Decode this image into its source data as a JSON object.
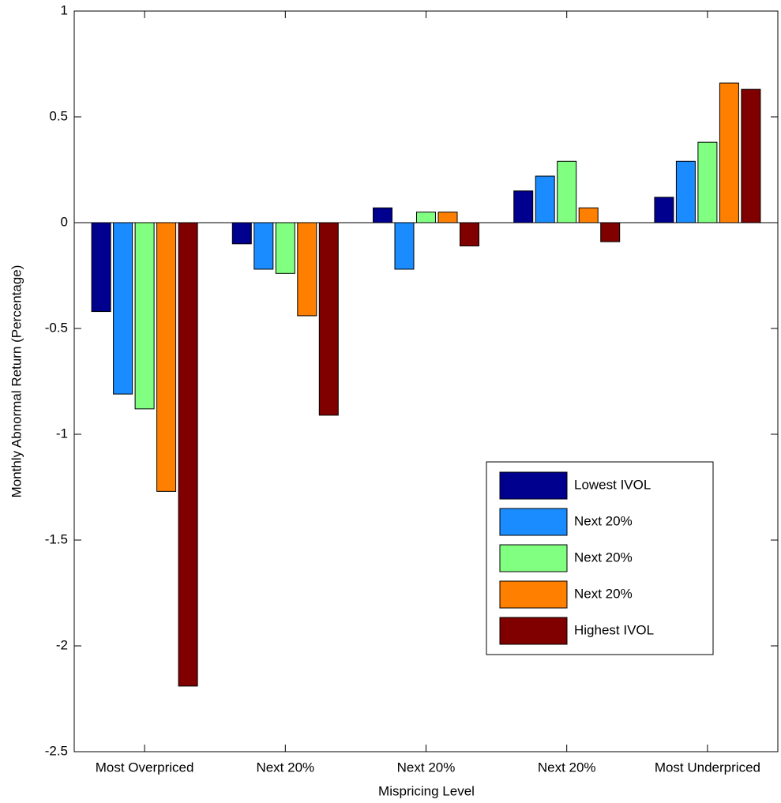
{
  "chart_data": {
    "type": "bar",
    "x_label": "Mispricing Level",
    "y_label": "Monthly Abnormal Return (Percentage)",
    "categories": [
      "Most Overpriced",
      "Next 20%",
      "Next 20%",
      "Next 20%",
      "Most Underpriced"
    ],
    "series": [
      {
        "name": "Lowest IVOL",
        "color": "#00008f",
        "values": [
          -0.42,
          -0.1,
          0.07,
          0.15,
          0.12
        ]
      },
      {
        "name": "Next 20%",
        "color": "#1a8cff",
        "values": [
          -0.81,
          -0.22,
          -0.22,
          0.22,
          0.29
        ]
      },
      {
        "name": "Next 20%",
        "color": "#80ff80",
        "values": [
          -0.88,
          -0.24,
          0.05,
          0.29,
          0.38
        ]
      },
      {
        "name": "Next 20%",
        "color": "#ff8000",
        "values": [
          -1.27,
          -0.44,
          0.05,
          0.07,
          0.66
        ]
      },
      {
        "name": "Highest IVOL",
        "color": "#800000",
        "values": [
          -2.19,
          -0.91,
          -0.11,
          -0.09,
          0.63
        ]
      }
    ],
    "ylim": [
      -2.5,
      1
    ],
    "yticks": [
      -2.5,
      -2,
      -1.5,
      -1,
      -0.5,
      0,
      0.5,
      1
    ],
    "legend_position": "lower right"
  }
}
